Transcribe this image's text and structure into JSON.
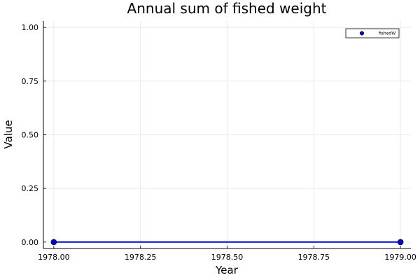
{
  "chart_data": {
    "type": "line",
    "title": "Annual sum of fished weight",
    "xlabel": "Year",
    "ylabel": "Value",
    "xlim": [
      1977.97,
      1979.03
    ],
    "ylim": [
      -0.03,
      1.03
    ],
    "xticks": [
      1978.0,
      1978.25,
      1978.5,
      1978.75,
      1979.0
    ],
    "xtick_labels": [
      "1978.00",
      "1978.25",
      "1978.50",
      "1978.75",
      "1979.00"
    ],
    "yticks": [
      0,
      0.25,
      0.5,
      0.75,
      1.0
    ],
    "ytick_labels": [
      "0.00",
      "0.25",
      "0.50",
      "0.75",
      "1.00"
    ],
    "grid": true,
    "legend_position": "top-right",
    "series": [
      {
        "name": "fishedW",
        "color": "#0000cc",
        "x": [
          1978.0,
          1979.0
        ],
        "y": [
          0,
          0
        ],
        "marker": "circle"
      }
    ]
  }
}
